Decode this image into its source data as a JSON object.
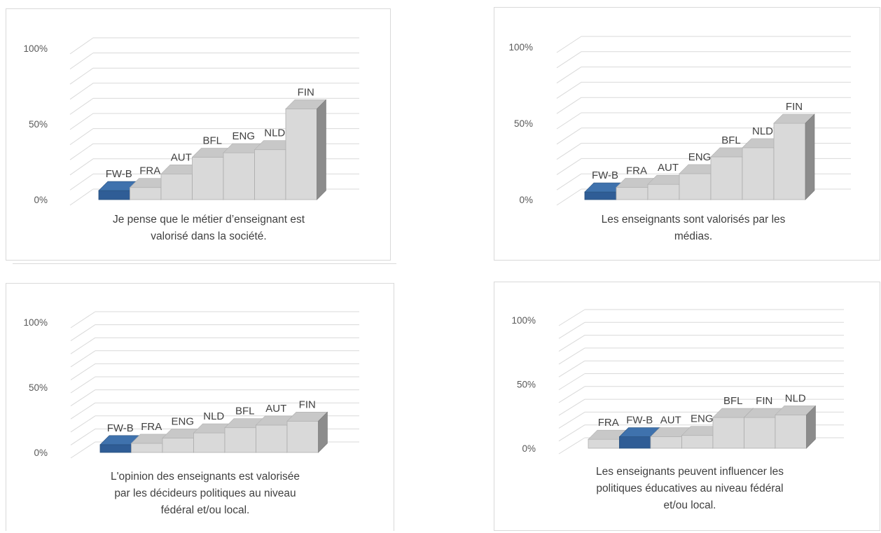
{
  "colors": {
    "highlight": "#2f5d96",
    "highlight_top": "#3f72ad",
    "highlight_side": "#234a78",
    "bar": "#d9d9d9",
    "bar_top": "#c8c8c8",
    "bar_side": "#8c8c8c",
    "grid": "#d9d9d9",
    "axis_text": "#595959"
  },
  "chart_data": [
    {
      "type": "bar",
      "title": "Je pense que le métier d’enseignant est valorisé dans la société.",
      "title_lines": [
        "Je pense que le métier d’enseignant est",
        "valorisé dans la société."
      ],
      "categories": [
        "FW-B",
        "FRA",
        "AUT",
        "BFL",
        "ENG",
        "NLD",
        "FIN"
      ],
      "values": [
        6,
        8,
        17,
        28,
        31,
        33,
        60
      ],
      "highlight": "FW-B",
      "ylim": [
        0,
        100
      ],
      "yticks": [
        "0%",
        "50%",
        "100%"
      ]
    },
    {
      "type": "bar",
      "title": "Les enseignants sont valorisés par les médias.",
      "title_lines": [
        "Les enseignants sont valorisés par les",
        "médias."
      ],
      "categories": [
        "FW-B",
        "FRA",
        "AUT",
        "ENG",
        "BFL",
        "NLD",
        "FIN"
      ],
      "values": [
        5,
        8,
        10,
        17,
        28,
        34,
        50
      ],
      "highlight": "FW-B",
      "ylim": [
        0,
        100
      ],
      "yticks": [
        "0%",
        "50%",
        "100%"
      ]
    },
    {
      "type": "bar",
      "title": "L'opinion des enseignants est valorisée par les décideurs politiques au niveau fédéral et/ou local.",
      "title_lines": [
        "L'opinion des enseignants est valorisée",
        "par les décideurs politiques au niveau",
        "fédéral et/ou local."
      ],
      "categories": [
        "FW-B",
        "FRA",
        "ENG",
        "NLD",
        "BFL",
        "AUT",
        "FIN"
      ],
      "values": [
        6,
        7,
        11,
        15,
        19,
        21,
        24
      ],
      "highlight": "FW-B",
      "ylim": [
        0,
        100
      ],
      "yticks": [
        "0%",
        "50%",
        "100%"
      ]
    },
    {
      "type": "bar",
      "title": "Les enseignants peuvent influencer les politiques éducatives au niveau fédéral et/ou local.",
      "title_lines": [
        "Les enseignants peuvent influencer les",
        "politiques éducatives au niveau fédéral",
        "et/ou local."
      ],
      "categories": [
        "FRA",
        "FW-B",
        "AUT",
        "ENG",
        "BFL",
        "FIN",
        "NLD"
      ],
      "values": [
        7,
        9,
        9,
        10,
        24,
        24,
        26
      ],
      "highlight": "FW-B",
      "ylim": [
        0,
        100
      ],
      "yticks": [
        "0%",
        "50%",
        "100%"
      ]
    }
  ]
}
